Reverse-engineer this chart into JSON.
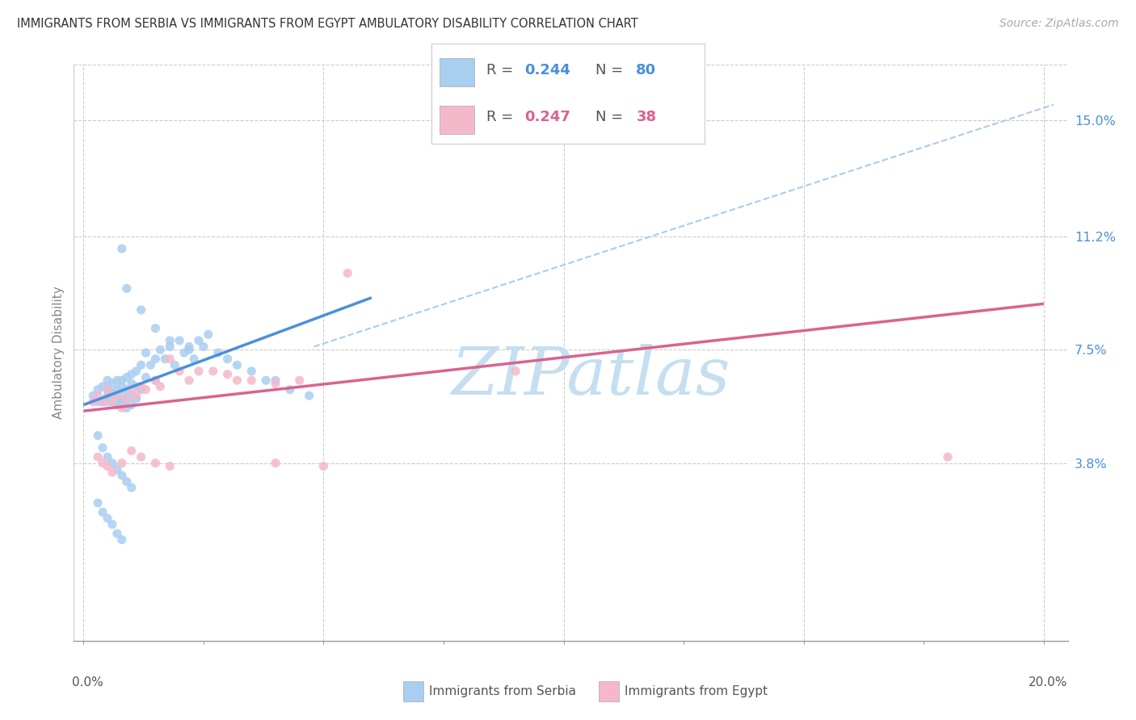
{
  "title": "IMMIGRANTS FROM SERBIA VS IMMIGRANTS FROM EGYPT AMBULATORY DISABILITY CORRELATION CHART",
  "source": "Source: ZipAtlas.com",
  "ylabel": "Ambulatory Disability",
  "ytick_labels": [
    "15.0%",
    "11.2%",
    "7.5%",
    "3.8%"
  ],
  "ytick_values": [
    0.15,
    0.112,
    0.075,
    0.038
  ],
  "xlim": [
    -0.002,
    0.205
  ],
  "ylim": [
    -0.02,
    0.168
  ],
  "R_serbia": "0.244",
  "N_serbia": "80",
  "R_egypt": "0.247",
  "N_egypt": "38",
  "color_serbia": "#a8cef0",
  "color_egypt": "#f5b8cb",
  "color_serbia_line": "#4a90d9",
  "color_egypt_line": "#d9638f",
  "color_dashed": "#aaccee",
  "watermark_color": "#c5dff0",
  "grid_color": "#cccccc",
  "serbia_x": [
    0.002,
    0.003,
    0.003,
    0.004,
    0.004,
    0.005,
    0.005,
    0.005,
    0.005,
    0.006,
    0.006,
    0.006,
    0.006,
    0.007,
    0.007,
    0.007,
    0.007,
    0.007,
    0.008,
    0.008,
    0.008,
    0.008,
    0.008,
    0.009,
    0.009,
    0.009,
    0.009,
    0.01,
    0.01,
    0.01,
    0.01,
    0.011,
    0.011,
    0.011,
    0.012,
    0.012,
    0.013,
    0.013,
    0.014,
    0.015,
    0.015,
    0.016,
    0.017,
    0.018,
    0.019,
    0.02,
    0.021,
    0.022,
    0.023,
    0.024,
    0.025,
    0.026,
    0.028,
    0.03,
    0.032,
    0.035,
    0.038,
    0.04,
    0.043,
    0.047,
    0.003,
    0.004,
    0.005,
    0.006,
    0.007,
    0.008,
    0.009,
    0.01,
    0.003,
    0.004,
    0.005,
    0.006,
    0.007,
    0.008,
    0.008,
    0.009,
    0.012,
    0.015,
    0.018,
    0.022
  ],
  "serbia_y": [
    0.06,
    0.062,
    0.058,
    0.063,
    0.058,
    0.06,
    0.062,
    0.058,
    0.065,
    0.059,
    0.061,
    0.064,
    0.058,
    0.06,
    0.062,
    0.058,
    0.065,
    0.057,
    0.063,
    0.06,
    0.058,
    0.065,
    0.057,
    0.062,
    0.059,
    0.066,
    0.056,
    0.064,
    0.06,
    0.057,
    0.067,
    0.063,
    0.059,
    0.068,
    0.062,
    0.07,
    0.066,
    0.074,
    0.07,
    0.072,
    0.065,
    0.075,
    0.072,
    0.076,
    0.07,
    0.078,
    0.074,
    0.076,
    0.072,
    0.078,
    0.076,
    0.08,
    0.074,
    0.072,
    0.07,
    0.068,
    0.065,
    0.065,
    0.062,
    0.06,
    0.047,
    0.043,
    0.04,
    0.038,
    0.036,
    0.034,
    0.032,
    0.03,
    0.025,
    0.022,
    0.02,
    0.018,
    0.015,
    0.013,
    0.108,
    0.095,
    0.088,
    0.082,
    0.078,
    0.075
  ],
  "egypt_x": [
    0.002,
    0.003,
    0.004,
    0.005,
    0.006,
    0.007,
    0.008,
    0.009,
    0.01,
    0.011,
    0.012,
    0.013,
    0.015,
    0.016,
    0.018,
    0.02,
    0.022,
    0.024,
    0.027,
    0.03,
    0.032,
    0.035,
    0.04,
    0.045,
    0.003,
    0.004,
    0.005,
    0.006,
    0.008,
    0.01,
    0.012,
    0.015,
    0.018,
    0.04,
    0.05,
    0.055,
    0.09,
    0.18
  ],
  "egypt_y": [
    0.058,
    0.06,
    0.058,
    0.062,
    0.058,
    0.06,
    0.056,
    0.059,
    0.062,
    0.06,
    0.063,
    0.062,
    0.065,
    0.063,
    0.072,
    0.068,
    0.065,
    0.068,
    0.068,
    0.067,
    0.065,
    0.065,
    0.064,
    0.065,
    0.04,
    0.038,
    0.037,
    0.035,
    0.038,
    0.042,
    0.04,
    0.038,
    0.037,
    0.038,
    0.037,
    0.1,
    0.068,
    0.04
  ],
  "serbia_line_x": [
    0.0,
    0.06
  ],
  "serbia_line_y": [
    0.057,
    0.092
  ],
  "egypt_line_x": [
    0.0,
    0.2
  ],
  "egypt_line_y": [
    0.055,
    0.09
  ],
  "dashed_line_x": [
    0.048,
    0.202
  ],
  "dashed_line_y": [
    0.076,
    0.155
  ]
}
